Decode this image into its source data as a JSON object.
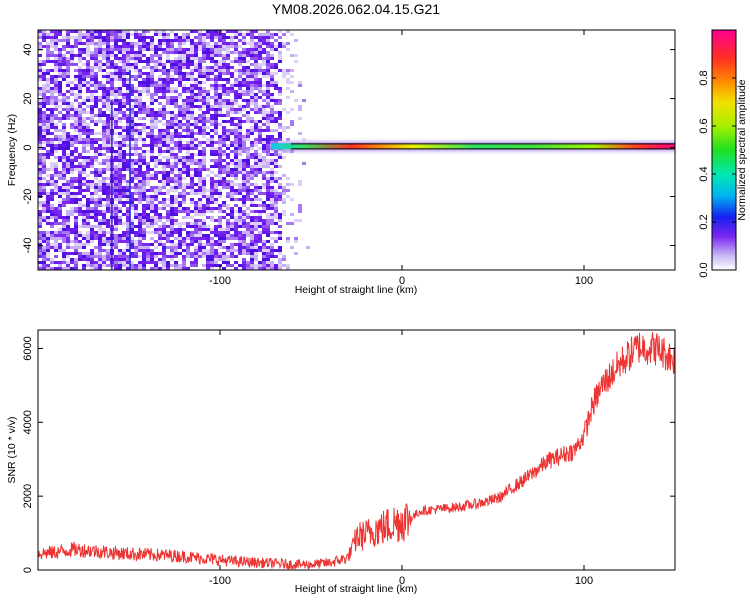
{
  "chart_data": [
    {
      "type": "heatmap",
      "title": "YM08.2026.062.04.15.G21",
      "xlabel": "Height of straight line (km)",
      "ylabel": "Frequency (Hz)",
      "xlim": [
        -200,
        150
      ],
      "ylim": [
        -50,
        48
      ],
      "x_ticks": [
        -100,
        0,
        100
      ],
      "x_tick_labels": [
        "-100",
        "0",
        "100"
      ],
      "y_ticks": [
        -40,
        -20,
        0,
        20,
        40
      ],
      "y_tick_labels": [
        "-40",
        "-20",
        "0",
        "20",
        "40"
      ],
      "colorbar": {
        "label": "Normalized spectral amplitude",
        "range": [
          0,
          1
        ],
        "ticks": [
          0,
          0.2,
          0.4,
          0.6,
          0.8
        ],
        "tick_labels": [
          "0.0",
          "0.2",
          "0.4",
          "0.6",
          "0.8"
        ]
      },
      "regions": {
        "noise_region_x": [
          -200,
          -52
        ],
        "signal_line_freq_hz": 0.5,
        "signal_start_km": -72
      },
      "grid": false
    },
    {
      "type": "line",
      "xlabel": "Height of straight line (km)",
      "ylabel": "SNR (10 * v/v)",
      "xlim": [
        -200,
        150
      ],
      "ylim": [
        0,
        6500
      ],
      "x_ticks": [
        -100,
        0,
        100
      ],
      "x_tick_labels": [
        "-100",
        "0",
        "100"
      ],
      "y_ticks": [
        0,
        2000,
        4000,
        6000
      ],
      "y_tick_labels": [
        "0",
        "2000",
        "4000",
        "6000"
      ],
      "color": "#ee3333",
      "series": [
        {
          "x": [
            -200,
            -190,
            -180,
            -170,
            -160,
            -150,
            -140,
            -130,
            -120,
            -110,
            -100,
            -90,
            -80,
            -70,
            -60,
            -50,
            -40,
            -30,
            -27,
            -25,
            -20,
            -15,
            -10,
            -5,
            0,
            5,
            10,
            20,
            30,
            40,
            50,
            55,
            60,
            70,
            80,
            85,
            90,
            95,
            100,
            105,
            110,
            120,
            130,
            140,
            150
          ],
          "y": [
            450,
            480,
            560,
            520,
            470,
            440,
            420,
            400,
            370,
            320,
            270,
            230,
            200,
            180,
            150,
            150,
            190,
            330,
            600,
            900,
            950,
            1100,
            1150,
            1250,
            1350,
            1400,
            1600,
            1650,
            1700,
            1780,
            1900,
            2000,
            2200,
            2550,
            2950,
            3050,
            3150,
            3250,
            3650,
            4500,
            5000,
            5600,
            6050,
            6000,
            5700
          ]
        }
      ],
      "grid": false
    }
  ]
}
